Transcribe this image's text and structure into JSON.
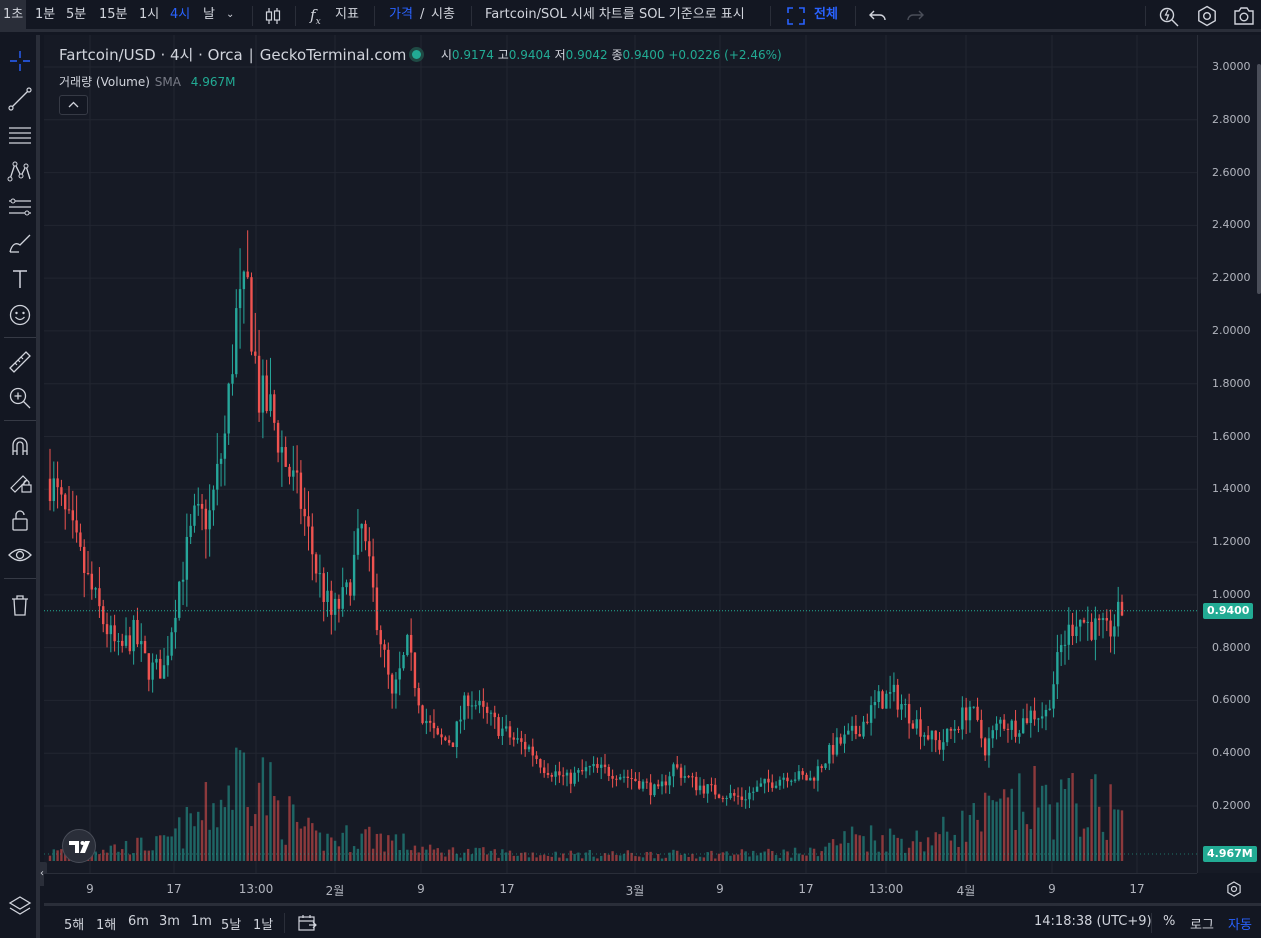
{
  "toolbar": {
    "intervals": [
      "1초",
      "1분",
      "5분",
      "15분",
      "1시",
      "4시",
      "날"
    ],
    "active_interval": "4시",
    "indicators_label": "지표",
    "price_label": "가격",
    "divider": "/",
    "mcap_label": "시총",
    "sol_toggle_label": "Fartcoin/SOL 시세 차트를 SOL 기준으로 표시",
    "fullscreen_label": "전체"
  },
  "legend": {
    "title": "Fartcoin/USD · 4시 · Orca ∣ GeckoTerminal.com",
    "o_label": "시",
    "o_value": "0.9174",
    "h_label": "고",
    "h_value": "0.9404",
    "l_label": "저",
    "l_value": "0.9042",
    "c_label": "종",
    "c_value": "0.9400",
    "change": "+0.0226 (+2.46%)",
    "volume_name": "거래량 (Volume)",
    "volume_ma": "SMA",
    "volume_value": "4.967M"
  },
  "price_axis": {
    "ticks": [
      "3.0000",
      "2.8000",
      "2.6000",
      "2.4000",
      "2.2000",
      "2.0000",
      "1.8000",
      "1.6000",
      "1.4000",
      "1.2000",
      "1.0000",
      "0.8000",
      "0.6000",
      "0.4000",
      "0.2000"
    ],
    "current_price": "0.9400",
    "current_volume": "4.967M"
  },
  "time_axis": {
    "ticks": [
      "9",
      "17",
      "13:00",
      "2월",
      "9",
      "17",
      "3월",
      "9",
      "17",
      "13:00",
      "4월",
      "9",
      "17"
    ]
  },
  "bottom": {
    "ranges": [
      "5해",
      "1해",
      "6m",
      "3m",
      "1m",
      "5날",
      "1날"
    ],
    "time": "14:18:38 (UTC+9)",
    "percent": "%",
    "log": "로그",
    "auto": "자동"
  },
  "colors": {
    "up": "#26a69a",
    "down": "#ef5350",
    "accent": "#2962ff",
    "price_tag": "#22ab94",
    "background": "#161a25"
  },
  "chart_data": {
    "type": "candlestick",
    "title": "Fartcoin/USD · 4시 · Orca ∣ GeckoTerminal.com",
    "ylim": [
      0,
      3.0
    ],
    "last_price": 0.94,
    "price_path": [
      [
        0,
        1.44
      ],
      [
        6,
        1.22
      ],
      [
        10,
        1.05
      ],
      [
        14,
        0.9
      ],
      [
        18,
        0.78
      ],
      [
        22,
        0.85
      ],
      [
        26,
        0.72
      ],
      [
        30,
        0.72
      ],
      [
        34,
        1.05
      ],
      [
        38,
        1.28
      ],
      [
        42,
        1.3
      ],
      [
        46,
        1.6
      ],
      [
        49,
        2.05
      ],
      [
        52,
        2.15
      ],
      [
        55,
        1.75
      ],
      [
        58,
        1.7
      ],
      [
        62,
        1.5
      ],
      [
        66,
        1.35
      ],
      [
        70,
        1.1
      ],
      [
        74,
        0.92
      ],
      [
        78,
        1.0
      ],
      [
        82,
        1.25
      ],
      [
        86,
        0.92
      ],
      [
        90,
        0.6
      ],
      [
        94,
        0.8
      ],
      [
        98,
        0.55
      ],
      [
        102,
        0.45
      ],
      [
        106,
        0.45
      ],
      [
        110,
        0.62
      ],
      [
        114,
        0.55
      ],
      [
        118,
        0.5
      ],
      [
        122,
        0.45
      ],
      [
        126,
        0.42
      ],
      [
        130,
        0.35
      ],
      [
        136,
        0.3
      ],
      [
        142,
        0.34
      ],
      [
        148,
        0.33
      ],
      [
        154,
        0.3
      ],
      [
        160,
        0.25
      ],
      [
        164,
        0.35
      ],
      [
        170,
        0.28
      ],
      [
        176,
        0.25
      ],
      [
        182,
        0.23
      ],
      [
        188,
        0.28
      ],
      [
        194,
        0.32
      ],
      [
        200,
        0.3
      ],
      [
        206,
        0.42
      ],
      [
        212,
        0.48
      ],
      [
        218,
        0.6
      ],
      [
        222,
        0.62
      ],
      [
        226,
        0.55
      ],
      [
        230,
        0.48
      ],
      [
        234,
        0.43
      ],
      [
        238,
        0.5
      ],
      [
        242,
        0.58
      ],
      [
        246,
        0.42
      ],
      [
        250,
        0.52
      ],
      [
        254,
        0.5
      ],
      [
        258,
        0.55
      ],
      [
        262,
        0.55
      ],
      [
        266,
        0.8
      ],
      [
        270,
        0.92
      ],
      [
        274,
        0.88
      ],
      [
        278,
        0.85
      ],
      [
        282,
        0.94
      ]
    ],
    "volume_profile": [
      [
        0,
        0.05
      ],
      [
        30,
        0.1
      ],
      [
        45,
        0.35
      ],
      [
        52,
        0.6
      ],
      [
        60,
        0.3
      ],
      [
        70,
        0.12
      ],
      [
        85,
        0.15
      ],
      [
        100,
        0.06
      ],
      [
        130,
        0.04
      ],
      [
        170,
        0.04
      ],
      [
        200,
        0.05
      ],
      [
        212,
        0.15
      ],
      [
        230,
        0.12
      ],
      [
        245,
        0.25
      ],
      [
        260,
        0.35
      ],
      [
        282,
        0.3
      ]
    ]
  }
}
